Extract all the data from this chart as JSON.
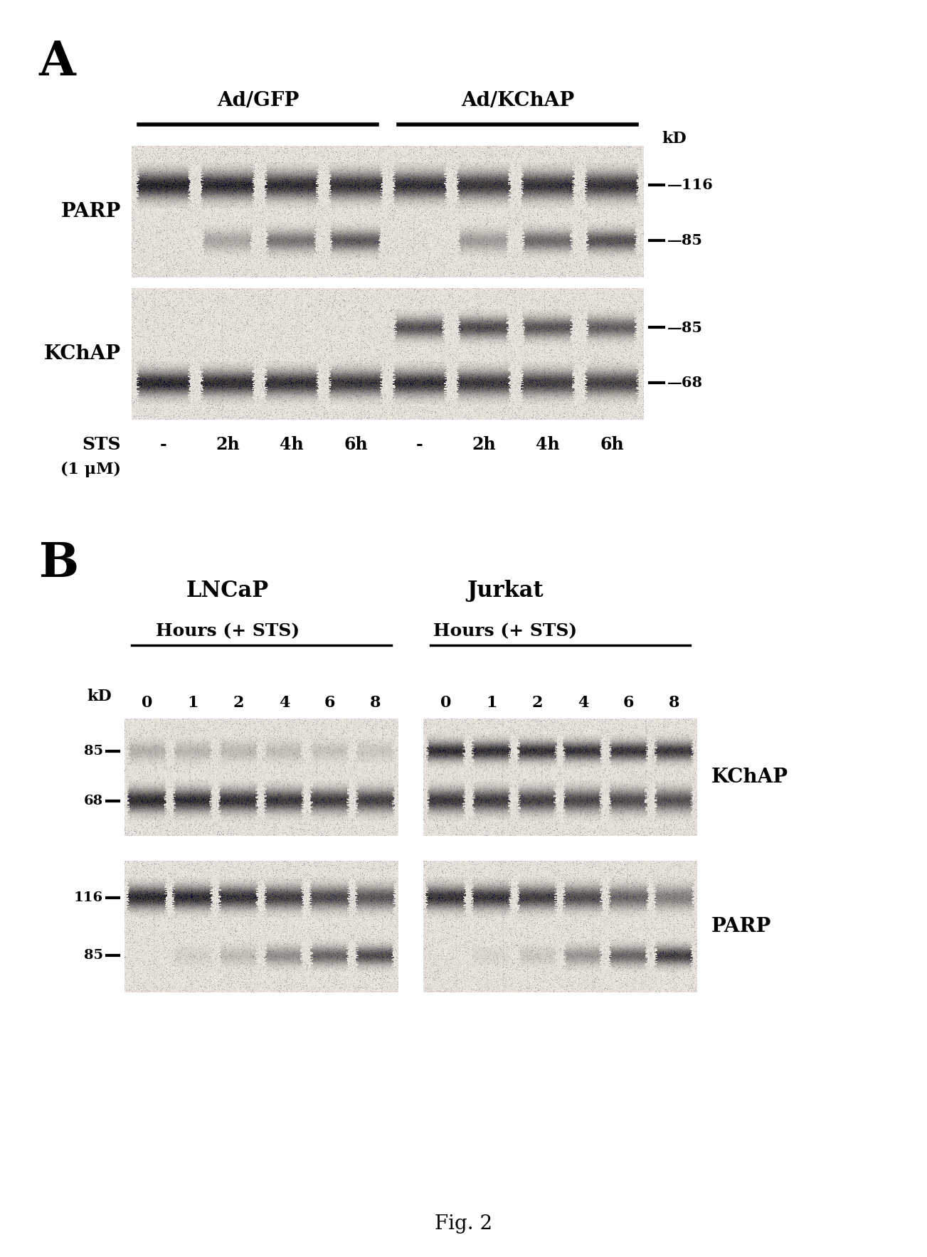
{
  "bg_color": "#ffffff",
  "fig_width": 13.03,
  "fig_height": 17.67,
  "blot_bg_light": [
    230,
    225,
    218
  ],
  "blot_dot_intensity": 0.18,
  "band_dark": [
    20,
    18,
    15
  ],
  "panel_A": {
    "label": "A",
    "gfp_label": "Ad/GFP",
    "kchap_label": "Ad/KChAP",
    "kd_label": "kD",
    "parp_label": "PARP",
    "kchap_row_label": "KChAP",
    "sts_label": "STS",
    "sts_unit": "(1 μM)",
    "timepoints": [
      "-",
      "2h",
      "4h",
      "6h",
      "-",
      "2h",
      "4h",
      "6h"
    ],
    "kd_parp": [
      "116",
      "85"
    ],
    "kd_kchap": [
      "85",
      "68"
    ]
  },
  "panel_B": {
    "label": "B",
    "lncap_label": "LNCaP",
    "jurkat_label": "Jurkat",
    "hours_label": "Hours (+ STS)",
    "kd_label": "kD",
    "timepoints": [
      "0",
      "1",
      "2",
      "4",
      "6",
      "8"
    ],
    "kd_kchap": [
      "85",
      "68"
    ],
    "kd_parp": [
      "116",
      "85"
    ],
    "kchap_label": "KChAP",
    "parp_label": "PARP"
  },
  "fig_label": "Fig. 2"
}
